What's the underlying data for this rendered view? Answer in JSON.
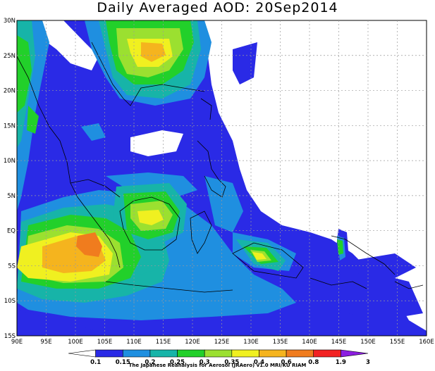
{
  "title": "Daily Averaged AOD: 20Sep2014",
  "footer": "The Japanese Reanalysis for Aerosol (JRAero) v1.0 MRI/KU RIAM",
  "map": {
    "lon_range": [
      90,
      160
    ],
    "lat_range": [
      -15,
      30
    ],
    "lon_ticks": [
      "90E",
      "95E",
      "100E",
      "105E",
      "110E",
      "115E",
      "120E",
      "125E",
      "130E",
      "135E",
      "140E",
      "145E",
      "150E",
      "155E",
      "160E"
    ],
    "lat_ticks": [
      "30N",
      "25N",
      "20N",
      "15N",
      "10N",
      "5N",
      "EQ",
      "5S",
      "10S",
      "15S"
    ],
    "grid": true
  },
  "colorbar": {
    "labels": [
      "0.1",
      "0.15",
      "0.2",
      "0.25",
      "0.3",
      "0.35",
      "0.4",
      "0.6",
      "0.8",
      "1.9",
      "3"
    ],
    "colors": [
      "#ffffff",
      "#2a2ae6",
      "#1f8fe0",
      "#17b4a8",
      "#22d02a",
      "#9be030",
      "#f0f020",
      "#f5b41e",
      "#f07c1e",
      "#f22222",
      "#8c1ee0"
    ]
  }
}
